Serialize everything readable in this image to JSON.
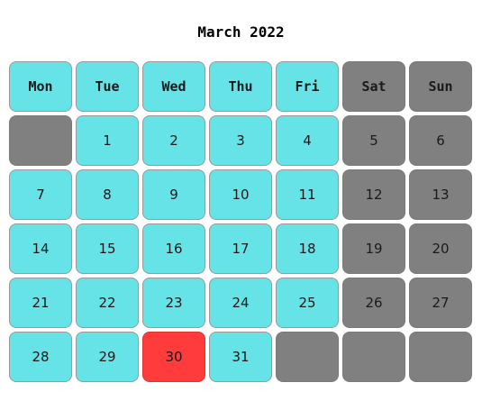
{
  "calendar": {
    "title": "March 2022",
    "weekdays": [
      "Mon",
      "Tue",
      "Wed",
      "Thu",
      "Fri",
      "Sat",
      "Sun"
    ],
    "weeks": [
      [
        "",
        "1",
        "2",
        "3",
        "4",
        "5",
        "6"
      ],
      [
        "7",
        "8",
        "9",
        "10",
        "11",
        "12",
        "13"
      ],
      [
        "14",
        "15",
        "16",
        "17",
        "18",
        "19",
        "20"
      ],
      [
        "21",
        "22",
        "23",
        "24",
        "25",
        "26",
        "27"
      ],
      [
        "28",
        "29",
        "30",
        "31",
        "",
        "",
        ""
      ]
    ],
    "highlighted_day": "30",
    "colors": {
      "weekday": "#66e3e6",
      "weekend": "#808080",
      "highlight": "#ff3b3b"
    }
  }
}
